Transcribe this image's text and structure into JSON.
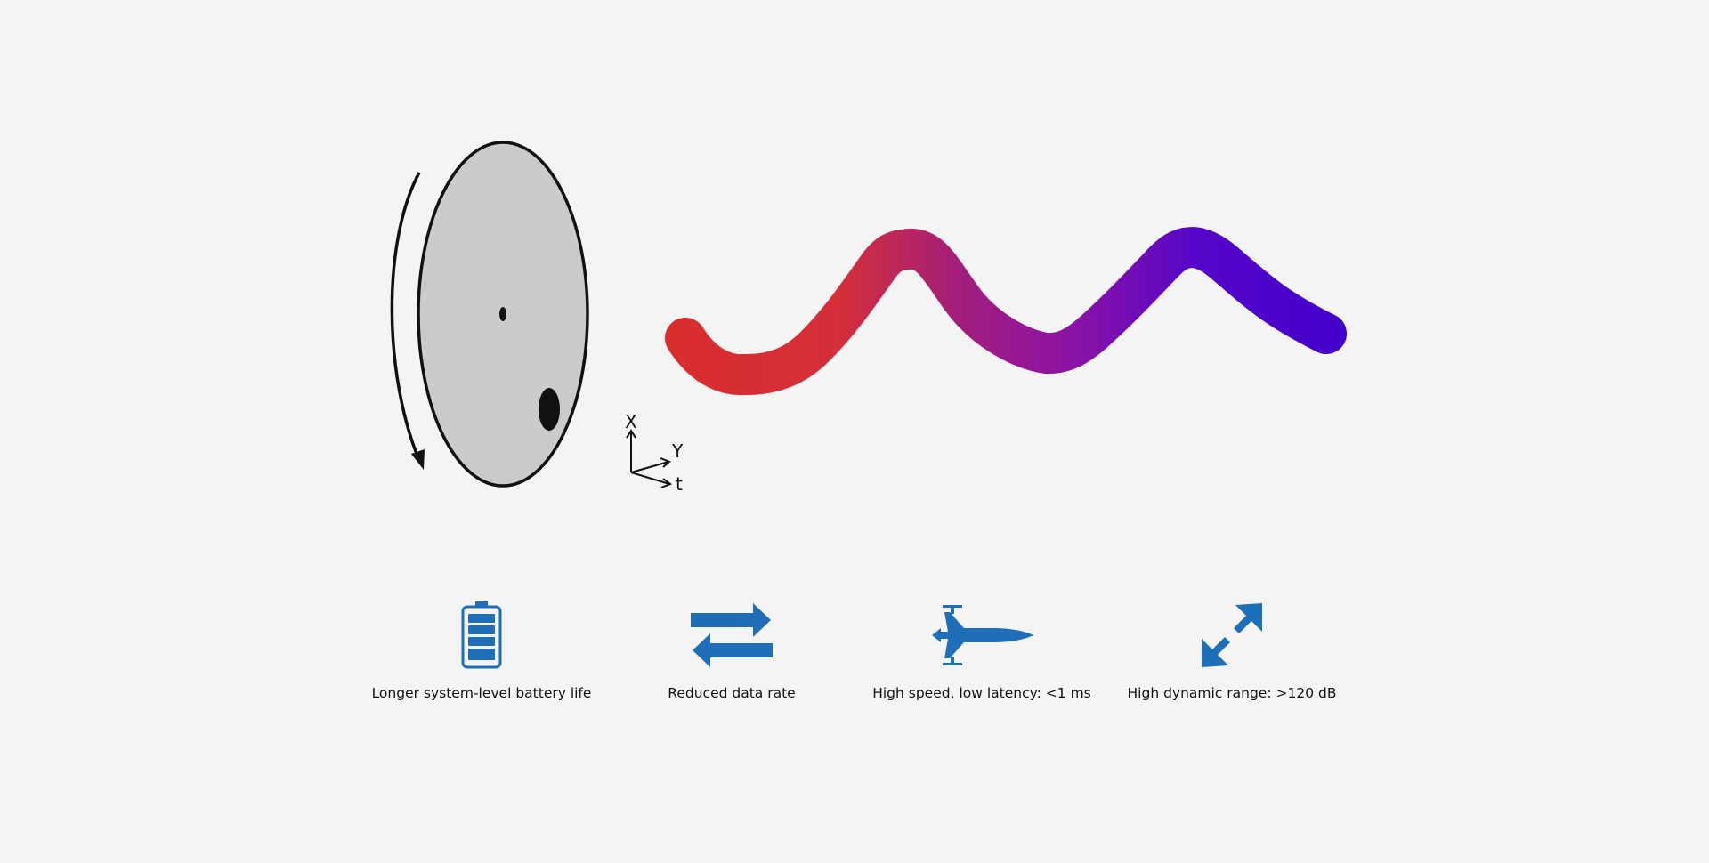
{
  "axes": {
    "x_label": "X",
    "y_label": "Y",
    "t_label": "t"
  },
  "colors": {
    "background": "#f4f4f4",
    "disk_fill": "#cbcbcb",
    "outline": "#111111",
    "trail_start": "#d92e2e",
    "trail_end": "#4400cc",
    "icon_blue": "#1f6fb8"
  },
  "features": [
    {
      "icon": "battery-icon",
      "caption": "Longer system-level battery life"
    },
    {
      "icon": "data-exchange-arrows-icon",
      "caption": "Reduced data rate"
    },
    {
      "icon": "fighter-jet-icon",
      "caption": "High speed, low latency: <1 ms"
    },
    {
      "icon": "diagonal-expand-arrow-icon",
      "caption": "High dynamic range: >120 dB"
    }
  ]
}
